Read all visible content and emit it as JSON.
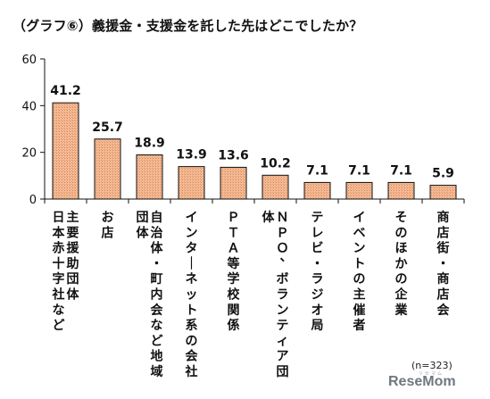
{
  "chart_data": {
    "type": "bar",
    "title": "（グラフ⑥）義援金・支援金を託した先はどこでしたか？",
    "categories": [
      "主要援助団体 日本赤十字社など",
      "お店",
      "自治体・町内会など地域団体",
      "インターネット系の会社",
      "ＰＴＡ等学校関係",
      "ＮＰＯ、ボランティア団体",
      "テレビ・ラジオ局",
      "イベントの主催者",
      "そのほかの企業",
      "商店街・商店会"
    ],
    "values": [
      41.2,
      25.7,
      18.9,
      13.9,
      13.6,
      10.2,
      7.1,
      7.1,
      7.1,
      5.9
    ],
    "value_labels": [
      "41.2",
      "25.7",
      "18.9",
      "13.9",
      "13.6",
      "10.2",
      "7.1",
      "7.1",
      "7.1",
      "5.9"
    ],
    "yticks": [
      "0",
      "20",
      "40",
      "60"
    ],
    "ylim": [
      0,
      60
    ],
    "xlabel": "",
    "ylabel": "",
    "grid": false,
    "legend": "none",
    "bar_color": "#f2b48a",
    "bar_stroke": "#111111",
    "note": "(n=323)"
  },
  "watermark": {
    "text": "ReseMom",
    "ruby": "リセマム"
  }
}
